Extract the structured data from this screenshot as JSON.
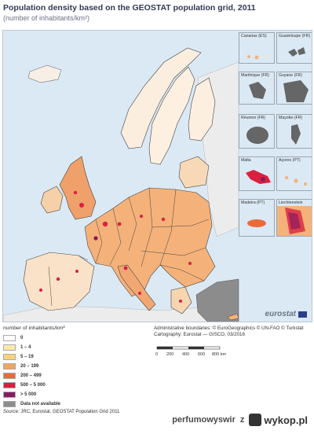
{
  "title": "Population density based on the GEOSTAT population grid, 2011",
  "subtitle": "(number of inhabitants/km²)",
  "insets": [
    {
      "label": "Canarias (ES)"
    },
    {
      "label": "Guadeloupe (FR)"
    },
    {
      "label": "Martinique (FR)"
    },
    {
      "label": "Guyane (FR)"
    },
    {
      "label": "Réunion (FR)"
    },
    {
      "label": "Mayotte (FR)"
    },
    {
      "label": "Malta"
    },
    {
      "label": "Açores (PT)"
    },
    {
      "label": "Madeira (PT)"
    },
    {
      "label": "Liechtenstein"
    }
  ],
  "brand": "eurostat",
  "legend": {
    "title": "number of inhabitants/km²",
    "classes": [
      {
        "label": "0",
        "color": "#ffffff"
      },
      {
        "label": "1 – 4",
        "color": "#fde9a9"
      },
      {
        "label": "5 – 19",
        "color": "#fbd27a"
      },
      {
        "label": "20 – 199",
        "color": "#f4a55a"
      },
      {
        "label": "200 – 499",
        "color": "#ea6a3a"
      },
      {
        "label": "500 – 5 000",
        "color": "#d9203f"
      },
      {
        "label": "> 5 000",
        "color": "#8a1a5f"
      },
      {
        "label": "Data not available",
        "color": "#8c8c8c"
      }
    ]
  },
  "credits": {
    "line1": "Administrative boundaries: © EuroGeographics © UN-FAO © Turkstat",
    "line2": "Cartography: Eurostat — GISCO, 03/2016"
  },
  "scale": {
    "ticks": [
      "0",
      "200",
      "400",
      "600",
      "800 km"
    ]
  },
  "source": {
    "prefix": "Source:",
    "text": " JRC, Eurostat, GEOSTAT Population Grid 2011"
  },
  "watermark": {
    "user": "perfumowyswir",
    "separator": "z",
    "site": "wykop.pl"
  },
  "colors": {
    "sea": "#dbe9f4",
    "nonEU": "#e8e8e8",
    "turkey": "#8c8c8c",
    "border": "#333333"
  }
}
